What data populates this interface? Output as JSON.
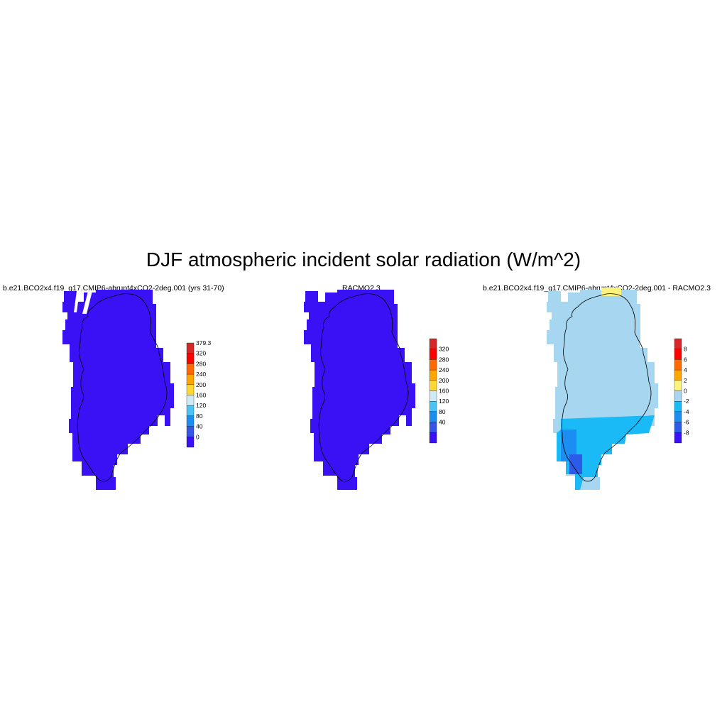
{
  "title": "DJF atmospheric incident solar radiation (W/m^2)",
  "colors": {
    "field": "#3a10f5",
    "diff_base": "#a6d6f0",
    "diff_neg2": "#19baf6",
    "diff_neg4": "#1a8ef2",
    "diff_neg6": "#2c5be8",
    "diff_pos": "#fdf37d",
    "outline": "#000000"
  },
  "panels": [
    {
      "title": "b.e21.BCO2x4.f19_g17.CMIP6-abrupt4xCO2-2deg.001 (yrs 31-70)",
      "field_value_class": "0-40",
      "colorbar": {
        "labels": [
          "379.3",
          "320",
          "280",
          "240",
          "200",
          "160",
          "120",
          "80",
          "40",
          "0"
        ],
        "colors": [
          "#d62828",
          "#ff0000",
          "#ff6a00",
          "#ffa500",
          "#ffd735",
          "#cfe9f7",
          "#4cc3f5",
          "#1a8ef2",
          "#3655e6",
          "#3a10f5"
        ]
      }
    },
    {
      "title": "RACMO2.3",
      "field_value_class": "<40",
      "colorbar": {
        "labels": [
          "320",
          "280",
          "240",
          "200",
          "160",
          "120",
          "80",
          "40"
        ],
        "colors": [
          "#d62828",
          "#ff0000",
          "#ff6a00",
          "#ffa500",
          "#ffd735",
          "#cfe9f7",
          "#4cc3f5",
          "#1a8ef2",
          "#3655e6",
          "#3a10f5"
        ]
      }
    },
    {
      "title": "b.e21.BCO2x4.f19_g17.CMIP6-abrupt4xCO2-2deg.001 - RACMO2.3",
      "field_value_class": "-2-0",
      "colorbar": {
        "labels": [
          "8",
          "6",
          "4",
          "2",
          "0",
          "-2",
          "-4",
          "-6",
          "-8"
        ],
        "colors": [
          "#d62828",
          "#ff0000",
          "#ff6a00",
          "#ffa500",
          "#fdf37d",
          "#a6d6f0",
          "#19baf6",
          "#1a8ef2",
          "#2c5be8",
          "#3a10f5"
        ]
      }
    }
  ]
}
